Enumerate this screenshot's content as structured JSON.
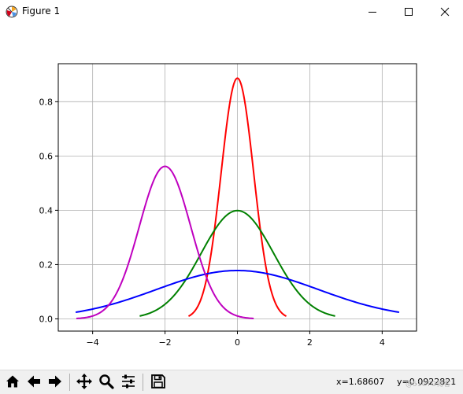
{
  "window": {
    "title": "Figure 1"
  },
  "chart_data": {
    "type": "line",
    "title": "",
    "xlabel": "",
    "ylabel": "",
    "xlim": [
      -4.95,
      4.95
    ],
    "ylim": [
      -0.045,
      0.94
    ],
    "xticks": [
      -4,
      -2,
      0,
      2,
      4
    ],
    "xtick_labels": [
      "−4",
      "−2",
      "0",
      "2",
      "4"
    ],
    "yticks": [
      0.0,
      0.2,
      0.4,
      0.6,
      0.8
    ],
    "ytick_labels": [
      "0.0",
      "0.2",
      "0.4",
      "0.6",
      "0.8"
    ],
    "grid": true,
    "series": [
      {
        "color": "#ff0000",
        "mu": 0,
        "sigma": 0.45,
        "x_range": [
          -1.35,
          1.35
        ],
        "x": [
          -1.35,
          -0.9,
          -0.45,
          0,
          0.45,
          0.9,
          1.35
        ],
        "y": [
          0.01,
          0.12,
          0.54,
          0.89,
          0.54,
          0.12,
          0.01
        ]
      },
      {
        "color": "#008000",
        "mu": 0,
        "sigma": 1.0,
        "x_range": [
          -2.7,
          2.7
        ],
        "x": [
          -2.7,
          -2,
          -1,
          0,
          1,
          2,
          2.7
        ],
        "y": [
          0.01,
          0.05,
          0.24,
          0.4,
          0.24,
          0.05,
          0.01
        ]
      },
      {
        "color": "#0000ff",
        "mu": 0,
        "sigma": 2.24,
        "x_range": [
          -4.47,
          4.47
        ],
        "x": [
          -4.47,
          -3,
          -2,
          -1,
          0,
          1,
          2,
          3,
          4.47
        ],
        "y": [
          0.024,
          0.07,
          0.12,
          0.16,
          0.18,
          0.16,
          0.12,
          0.07,
          0.024
        ]
      },
      {
        "color": "#bf00bf",
        "mu": -2,
        "sigma": 0.71,
        "x_range": [
          -4.45,
          0.45
        ],
        "x": [
          -4.45,
          -3.4,
          -2.7,
          -2,
          -1.3,
          -0.6,
          0.45
        ],
        "y": [
          0.0,
          0.08,
          0.34,
          0.56,
          0.34,
          0.08,
          0.0
        ]
      }
    ]
  },
  "toolbar": {
    "buttons": [
      {
        "name": "home-button",
        "icon": "home-icon"
      },
      {
        "name": "back-button",
        "icon": "arrow-left-icon"
      },
      {
        "name": "forward-button",
        "icon": "arrow-right-icon"
      },
      {
        "name": "pan-button",
        "icon": "move-icon"
      },
      {
        "name": "zoom-button",
        "icon": "magnifier-icon"
      },
      {
        "name": "configure-subplots-button",
        "icon": "sliders-icon"
      },
      {
        "name": "save-button",
        "icon": "floppy-icon"
      }
    ],
    "x_coord": "x=1.68607",
    "y_coord": "y=0.0922821",
    "watermark": "@51CTO博客"
  }
}
